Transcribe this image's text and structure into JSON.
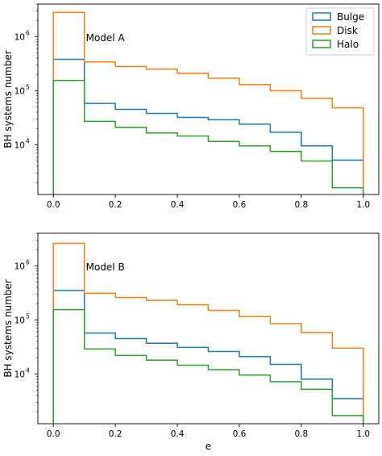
{
  "chart_data": [
    {
      "type": "histogram",
      "annotation": "Model A",
      "xlabel": "",
      "ylabel": "BH systems number",
      "yscale": "log",
      "xlim": [
        -0.05,
        1.05
      ],
      "ylim": [
        1200,
        4000000
      ],
      "x_ticks": [
        {
          "value": 0.0,
          "label": "0.0"
        },
        {
          "value": 0.2,
          "label": "0.2"
        },
        {
          "value": 0.4,
          "label": "0.4"
        },
        {
          "value": 0.6,
          "label": "0.6"
        },
        {
          "value": 0.8,
          "label": "0.8"
        },
        {
          "value": 1.0,
          "label": "1.0"
        }
      ],
      "y_ticks": [
        {
          "value": 10000,
          "label": "10",
          "exp": "4"
        },
        {
          "value": 100000,
          "label": "10",
          "exp": "5"
        },
        {
          "value": 1000000,
          "label": "10",
          "exp": "6"
        }
      ],
      "legend": {
        "position": "top-right",
        "entries": [
          "Bulge",
          "Disk",
          "Halo"
        ]
      },
      "bin_edges": [
        0.0,
        0.1,
        0.2,
        0.3,
        0.4,
        0.5,
        0.6,
        0.7,
        0.8,
        0.9,
        1.0
      ],
      "series": [
        {
          "name": "Bulge",
          "color": "#1f77b4",
          "values": [
            380000,
            58000,
            45000,
            38000,
            32000,
            29000,
            24000,
            17000,
            9500,
            5200
          ]
        },
        {
          "name": "Disk",
          "color": "#ff7f0e",
          "values": [
            2800000,
            340000,
            280000,
            250000,
            210000,
            170000,
            130000,
            100000,
            72000,
            48000
          ]
        },
        {
          "name": "Halo",
          "color": "#2ca02c",
          "values": [
            155000,
            27000,
            21000,
            16500,
            14500,
            11500,
            9500,
            7500,
            5000,
            1600
          ]
        }
      ]
    },
    {
      "type": "histogram",
      "annotation": "Model B",
      "xlabel": "e",
      "ylabel": "BH systems number",
      "yscale": "log",
      "xlim": [
        -0.05,
        1.05
      ],
      "ylim": [
        1200,
        4000000
      ],
      "x_ticks": [
        {
          "value": 0.0,
          "label": "0.0"
        },
        {
          "value": 0.2,
          "label": "0.2"
        },
        {
          "value": 0.4,
          "label": "0.4"
        },
        {
          "value": 0.6,
          "label": "0.6"
        },
        {
          "value": 0.8,
          "label": "0.8"
        },
        {
          "value": 1.0,
          "label": "1.0"
        }
      ],
      "y_ticks": [
        {
          "value": 10000,
          "label": "10",
          "exp": "4"
        },
        {
          "value": 100000,
          "label": "10",
          "exp": "5"
        },
        {
          "value": 1000000,
          "label": "10",
          "exp": "6"
        }
      ],
      "legend": null,
      "bin_edges": [
        0.0,
        0.1,
        0.2,
        0.3,
        0.4,
        0.5,
        0.6,
        0.7,
        0.8,
        0.9,
        1.0
      ],
      "series": [
        {
          "name": "Bulge",
          "color": "#1f77b4",
          "values": [
            350000,
            57000,
            45000,
            37000,
            31000,
            26000,
            21000,
            15000,
            8000,
            3500
          ]
        },
        {
          "name": "Disk",
          "color": "#ff7f0e",
          "values": [
            2600000,
            310000,
            260000,
            230000,
            190000,
            150000,
            115000,
            85000,
            58000,
            30000
          ]
        },
        {
          "name": "Halo",
          "color": "#2ca02c",
          "values": [
            155000,
            29000,
            22000,
            18000,
            14500,
            12000,
            9500,
            7200,
            5200,
            1700
          ]
        }
      ]
    }
  ]
}
